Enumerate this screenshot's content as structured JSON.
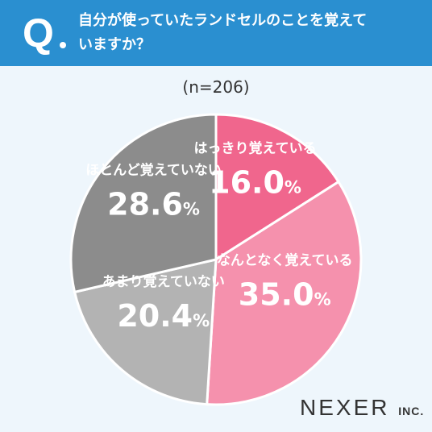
{
  "header": {
    "q_mark": "Q",
    "question_line1": "自分が使っていたランドセルのことを覚えて",
    "question_line2": "いますか？",
    "color": "#2a8fd0"
  },
  "chart_data": {
    "type": "pie",
    "note_label": "(n=206)",
    "slices": [
      {
        "name": "はっきり覚えている",
        "value": 16.0,
        "value_label": "16.0",
        "unit": "%",
        "color": "#f0668d"
      },
      {
        "name": "なんとなく覚えている",
        "value": 35.0,
        "value_label": "35.0",
        "unit": "%",
        "color": "#f591ad"
      },
      {
        "name": "あまり覚えていない",
        "value": 20.4,
        "value_label": "20.4",
        "unit": "%",
        "color": "#b3b3b3"
      },
      {
        "name": "ほとんど覚えていない",
        "value": 28.6,
        "value_label": "28.6",
        "unit": "%",
        "color": "#8c8c8c"
      }
    ]
  },
  "logo": {
    "text": "NEXER",
    "suffix": "INC."
  }
}
